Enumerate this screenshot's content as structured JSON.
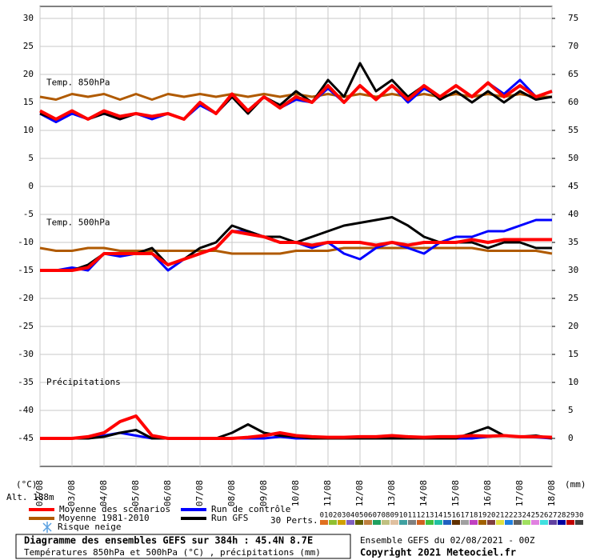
{
  "chart_data": {
    "type": "line",
    "panel_labels": [
      "Temp. 850hPa",
      "Temp. 500hPa",
      "Précipitations"
    ],
    "x": [
      0,
      12,
      24,
      36,
      48,
      60,
      72,
      84,
      96,
      108,
      120,
      132,
      144,
      156,
      168,
      180,
      192,
      204,
      216,
      228,
      240,
      252,
      264,
      276,
      288,
      300,
      312,
      324,
      336,
      348,
      360,
      372,
      384
    ],
    "xlim": [
      0,
      384
    ],
    "xticks": [
      {
        "value": 0,
        "label": "02/08"
      },
      {
        "value": 24,
        "label": "03/08"
      },
      {
        "value": 48,
        "label": "04/08"
      },
      {
        "value": 72,
        "label": "05/08"
      },
      {
        "value": 96,
        "label": "06/08"
      },
      {
        "value": 120,
        "label": "07/08"
      },
      {
        "value": 144,
        "label": "08/08"
      },
      {
        "value": 168,
        "label": "09/08"
      },
      {
        "value": 192,
        "label": "10/08"
      },
      {
        "value": 216,
        "label": "11/08"
      },
      {
        "value": 240,
        "label": "12/08"
      },
      {
        "value": 264,
        "label": "13/08"
      },
      {
        "value": 288,
        "label": "14/08"
      },
      {
        "value": 312,
        "label": "15/08"
      },
      {
        "value": 336,
        "label": "16/08"
      },
      {
        "value": 360,
        "label": "17/08"
      },
      {
        "value": 384,
        "label": "18/08"
      }
    ],
    "ylim": [
      -50,
      30
    ],
    "yticks": [
      30,
      25,
      20,
      15,
      10,
      5,
      0,
      -5,
      -10,
      -15,
      -20,
      -25,
      -30,
      -35,
      -40,
      -45
    ],
    "y2lim": [
      -5,
      75
    ],
    "y2ticks": [
      75,
      70,
      65,
      60,
      55,
      50,
      45,
      40,
      35,
      30,
      25,
      20,
      15,
      10,
      5,
      0
    ],
    "grid": true,
    "y_unit": "(°C)",
    "y2_unit": "(mm)",
    "altitude": "Alt. 188m",
    "series": [
      {
        "name": "Moyenne des scénarios",
        "color": "#ff0000",
        "width": 4,
        "t850": [
          13.5,
          12,
          13.5,
          12,
          13.5,
          12.5,
          13,
          12.5,
          13,
          12,
          15,
          13,
          16.5,
          13.5,
          16,
          14,
          16,
          15,
          18,
          15,
          18,
          15.5,
          18,
          15.5,
          18,
          16,
          18,
          16,
          18.5,
          16,
          18,
          16,
          17
        ],
        "t500": [
          -15,
          -15,
          -15,
          -14.5,
          -12,
          -12,
          -12,
          -12,
          -14,
          -13,
          -12,
          -11,
          -8,
          -8.5,
          -9,
          -10,
          -10,
          -10.5,
          -10,
          -10,
          -10,
          -10.5,
          -10,
          -10.5,
          -10,
          -10,
          -10,
          -9.5,
          -10,
          -9.5,
          -9.5,
          -9.5,
          -9.5
        ],
        "precip": [
          0,
          0,
          0,
          0.3,
          1,
          3,
          4,
          0.5,
          0,
          0,
          0,
          0,
          0,
          0.2,
          0.5,
          1,
          0.5,
          0.3,
          0.2,
          0.2,
          0.3,
          0.3,
          0.5,
          0.3,
          0.2,
          0.3,
          0.3,
          0.5,
          0.4,
          0.5,
          0.3,
          0.3,
          0.2
        ]
      },
      {
        "name": "Moyenne 1981-2010",
        "color": "#b05a00",
        "width": 3,
        "t850": [
          16,
          15.5,
          16.5,
          16,
          16.5,
          15.5,
          16.5,
          15.5,
          16.5,
          16,
          16.5,
          16,
          16.5,
          16,
          16.5,
          16,
          16.5,
          16,
          16.5,
          16,
          16.5,
          16,
          16.5,
          16,
          16.5,
          16,
          16.5,
          16,
          16.5,
          16,
          16.5,
          16,
          16
        ],
        "t500": [
          -11,
          -11.5,
          -11.5,
          -11,
          -11,
          -11.5,
          -11.5,
          -11.5,
          -11.5,
          -11.5,
          -11.5,
          -11.5,
          -12,
          -12,
          -12,
          -12,
          -11.5,
          -11.5,
          -11.5,
          -11,
          -11,
          -11,
          -11,
          -11,
          -11,
          -11,
          -11,
          -11,
          -11.5,
          -11.5,
          -11.5,
          -11.5,
          -12
        ]
      },
      {
        "name": "Run de contrôle",
        "color": "#0000ff",
        "width": 3,
        "t850": [
          13,
          11.5,
          13,
          12,
          13,
          12,
          13,
          12,
          13,
          12,
          14.5,
          13,
          16,
          13.5,
          16,
          14,
          15.5,
          15,
          17.5,
          15,
          18,
          15.5,
          18,
          15,
          17.5,
          16,
          18,
          16,
          18.5,
          16.5,
          19,
          16,
          17
        ],
        "t500": [
          -15,
          -15,
          -14.5,
          -15,
          -12,
          -12.5,
          -12,
          -12,
          -15,
          -13,
          -12,
          -11,
          -8,
          -8,
          -9,
          -10,
          -10,
          -11,
          -10,
          -12,
          -13,
          -11,
          -10,
          -11,
          -12,
          -10,
          -9,
          -9,
          -8,
          -8,
          -7,
          -6,
          -6
        ],
        "precip": [
          0,
          0,
          0,
          0,
          0.5,
          1,
          0.5,
          0,
          0,
          0,
          0,
          0,
          0,
          0,
          0,
          0.3,
          0,
          0,
          0,
          0,
          0,
          0,
          0,
          0,
          0,
          0,
          0,
          0,
          0.3,
          0.5,
          0.3,
          0.2,
          0
        ]
      },
      {
        "name": "Run GFS",
        "color": "#000000",
        "width": 3,
        "t850": [
          13,
          12,
          13.5,
          12,
          13,
          12,
          13,
          12.5,
          13,
          12,
          15,
          13,
          16,
          13,
          16,
          14.5,
          17,
          15,
          19,
          16,
          22,
          17,
          19,
          16,
          18,
          15.5,
          17,
          15,
          17,
          15,
          17,
          15.5,
          16
        ],
        "t500": [
          -15,
          -15,
          -15,
          -14,
          -12,
          -12,
          -12,
          -11,
          -14,
          -13,
          -11,
          -10,
          -7,
          -8,
          -9,
          -9,
          -10,
          -9,
          -8,
          -7,
          -6.5,
          -6,
          -5.5,
          -7,
          -9,
          -10,
          -10,
          -10,
          -11,
          -10,
          -10,
          -11,
          -11
        ],
        "precip": [
          0,
          0,
          0,
          0,
          0.3,
          1,
          1.5,
          0,
          0,
          0,
          0,
          0,
          1,
          2.5,
          1,
          0.5,
          0.3,
          0,
          0,
          0,
          0,
          0,
          0,
          0,
          0,
          0,
          0,
          1,
          2,
          0.5,
          0.3,
          0.5,
          0
        ]
      }
    ],
    "snow_label": "Risque neige",
    "members_label": "30 Perts.",
    "members": [
      {
        "label": "01",
        "color": "#e07020"
      },
      {
        "label": "02",
        "color": "#90c030"
      },
      {
        "label": "03",
        "color": "#d0a000"
      },
      {
        "label": "04",
        "color": "#8060c0"
      },
      {
        "label": "05",
        "color": "#606000"
      },
      {
        "label": "06",
        "color": "#c08040"
      },
      {
        "label": "07",
        "color": "#20a060"
      },
      {
        "label": "08",
        "color": "#c0c080"
      },
      {
        "label": "09",
        "color": "#e0c0a0"
      },
      {
        "label": "10",
        "color": "#40a0a0"
      },
      {
        "label": "11",
        "color": "#808080"
      },
      {
        "label": "12",
        "color": "#d06020"
      },
      {
        "label": "13",
        "color": "#40c040"
      },
      {
        "label": "14",
        "color": "#20c0a0"
      },
      {
        "label": "15",
        "color": "#2060c0"
      },
      {
        "label": "16",
        "color": "#603000"
      },
      {
        "label": "17",
        "color": "#a0a0a0"
      },
      {
        "label": "18",
        "color": "#c040c0"
      },
      {
        "label": "19",
        "color": "#a06000"
      },
      {
        "label": "20",
        "color": "#804040"
      },
      {
        "label": "21",
        "color": "#e0e040"
      },
      {
        "label": "22",
        "color": "#2080e0"
      },
      {
        "label": "23",
        "color": "#606060"
      },
      {
        "label": "24",
        "color": "#a0e060"
      },
      {
        "label": "25",
        "color": "#e080e0"
      },
      {
        "label": "26",
        "color": "#40e0e0"
      },
      {
        "label": "27",
        "color": "#6040a0"
      },
      {
        "label": "28",
        "color": "#0000a0"
      },
      {
        "label": "29",
        "color": "#c00000"
      },
      {
        "label": "30",
        "color": "#404040"
      }
    ],
    "footer_title": "Diagramme des ensembles GEFS sur 384h : 45.4N 8.7E",
    "footer_subtitle": "Températures 850hPa et 500hPa (°C) , précipitations (mm)",
    "run_info": "Ensemble GEFS du 02/08/2021 - 00Z",
    "copyright": "Copyright 2021 Meteociel.fr"
  }
}
